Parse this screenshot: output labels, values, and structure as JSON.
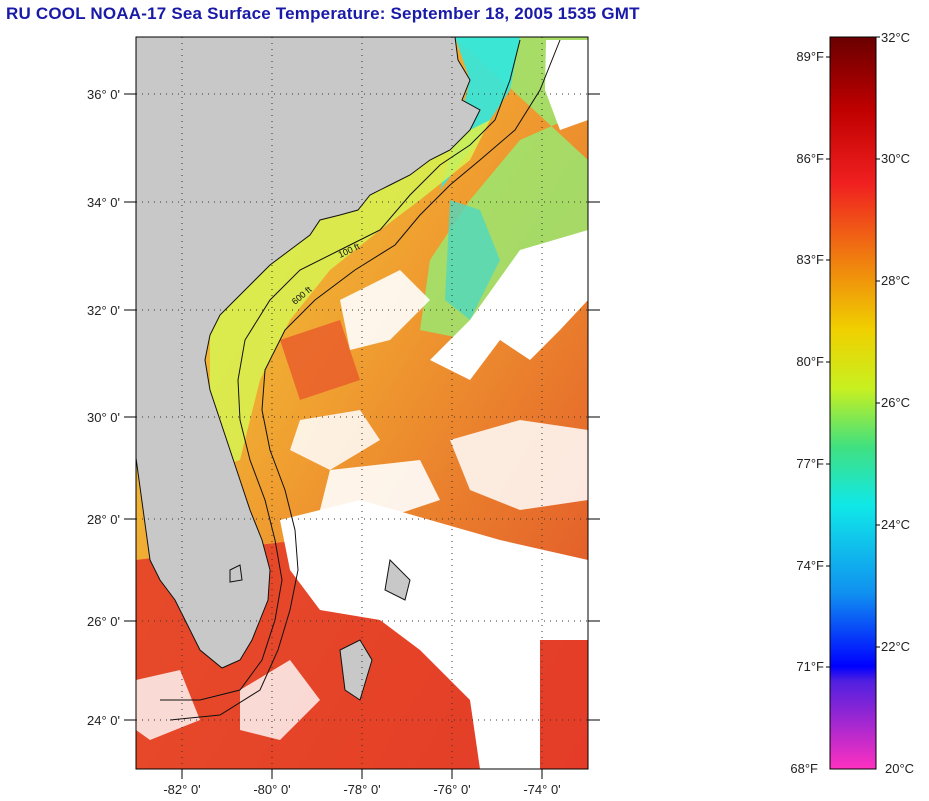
{
  "title": "RU COOL  NOAA-17  Sea Surface Temperature:  September 18, 2005 1535 GMT",
  "map": {
    "lat_labels": [
      "36° 0'",
      "34° 0'",
      "32° 0'",
      "30° 0'",
      "28° 0'",
      "26° 0'",
      "24° 0'"
    ],
    "lon_labels": [
      "-82° 0'",
      "-80° 0'",
      "-78° 0'",
      "-76° 0'",
      "-74° 0'"
    ],
    "isobath_labels": [
      "100 ft",
      "600 ft"
    ],
    "colors": {
      "land": "#c8c8c8",
      "cloud": "#ffffff",
      "cool_shelf": "#4fe0c8",
      "warm_shelf": "#e8f040",
      "stream": "#f08a2a",
      "hot": "#e0302a"
    }
  },
  "colorbar": {
    "f_labels": [
      "89°F",
      "86°F",
      "83°F",
      "80°F",
      "77°F",
      "74°F",
      "71°F",
      "68°F"
    ],
    "c_labels": [
      "32°C",
      "30°C",
      "28°C",
      "26°C",
      "24°C",
      "22°C",
      "20°C"
    ],
    "range_c": [
      20,
      32
    ],
    "range_f": [
      68,
      89.6
    ]
  }
}
